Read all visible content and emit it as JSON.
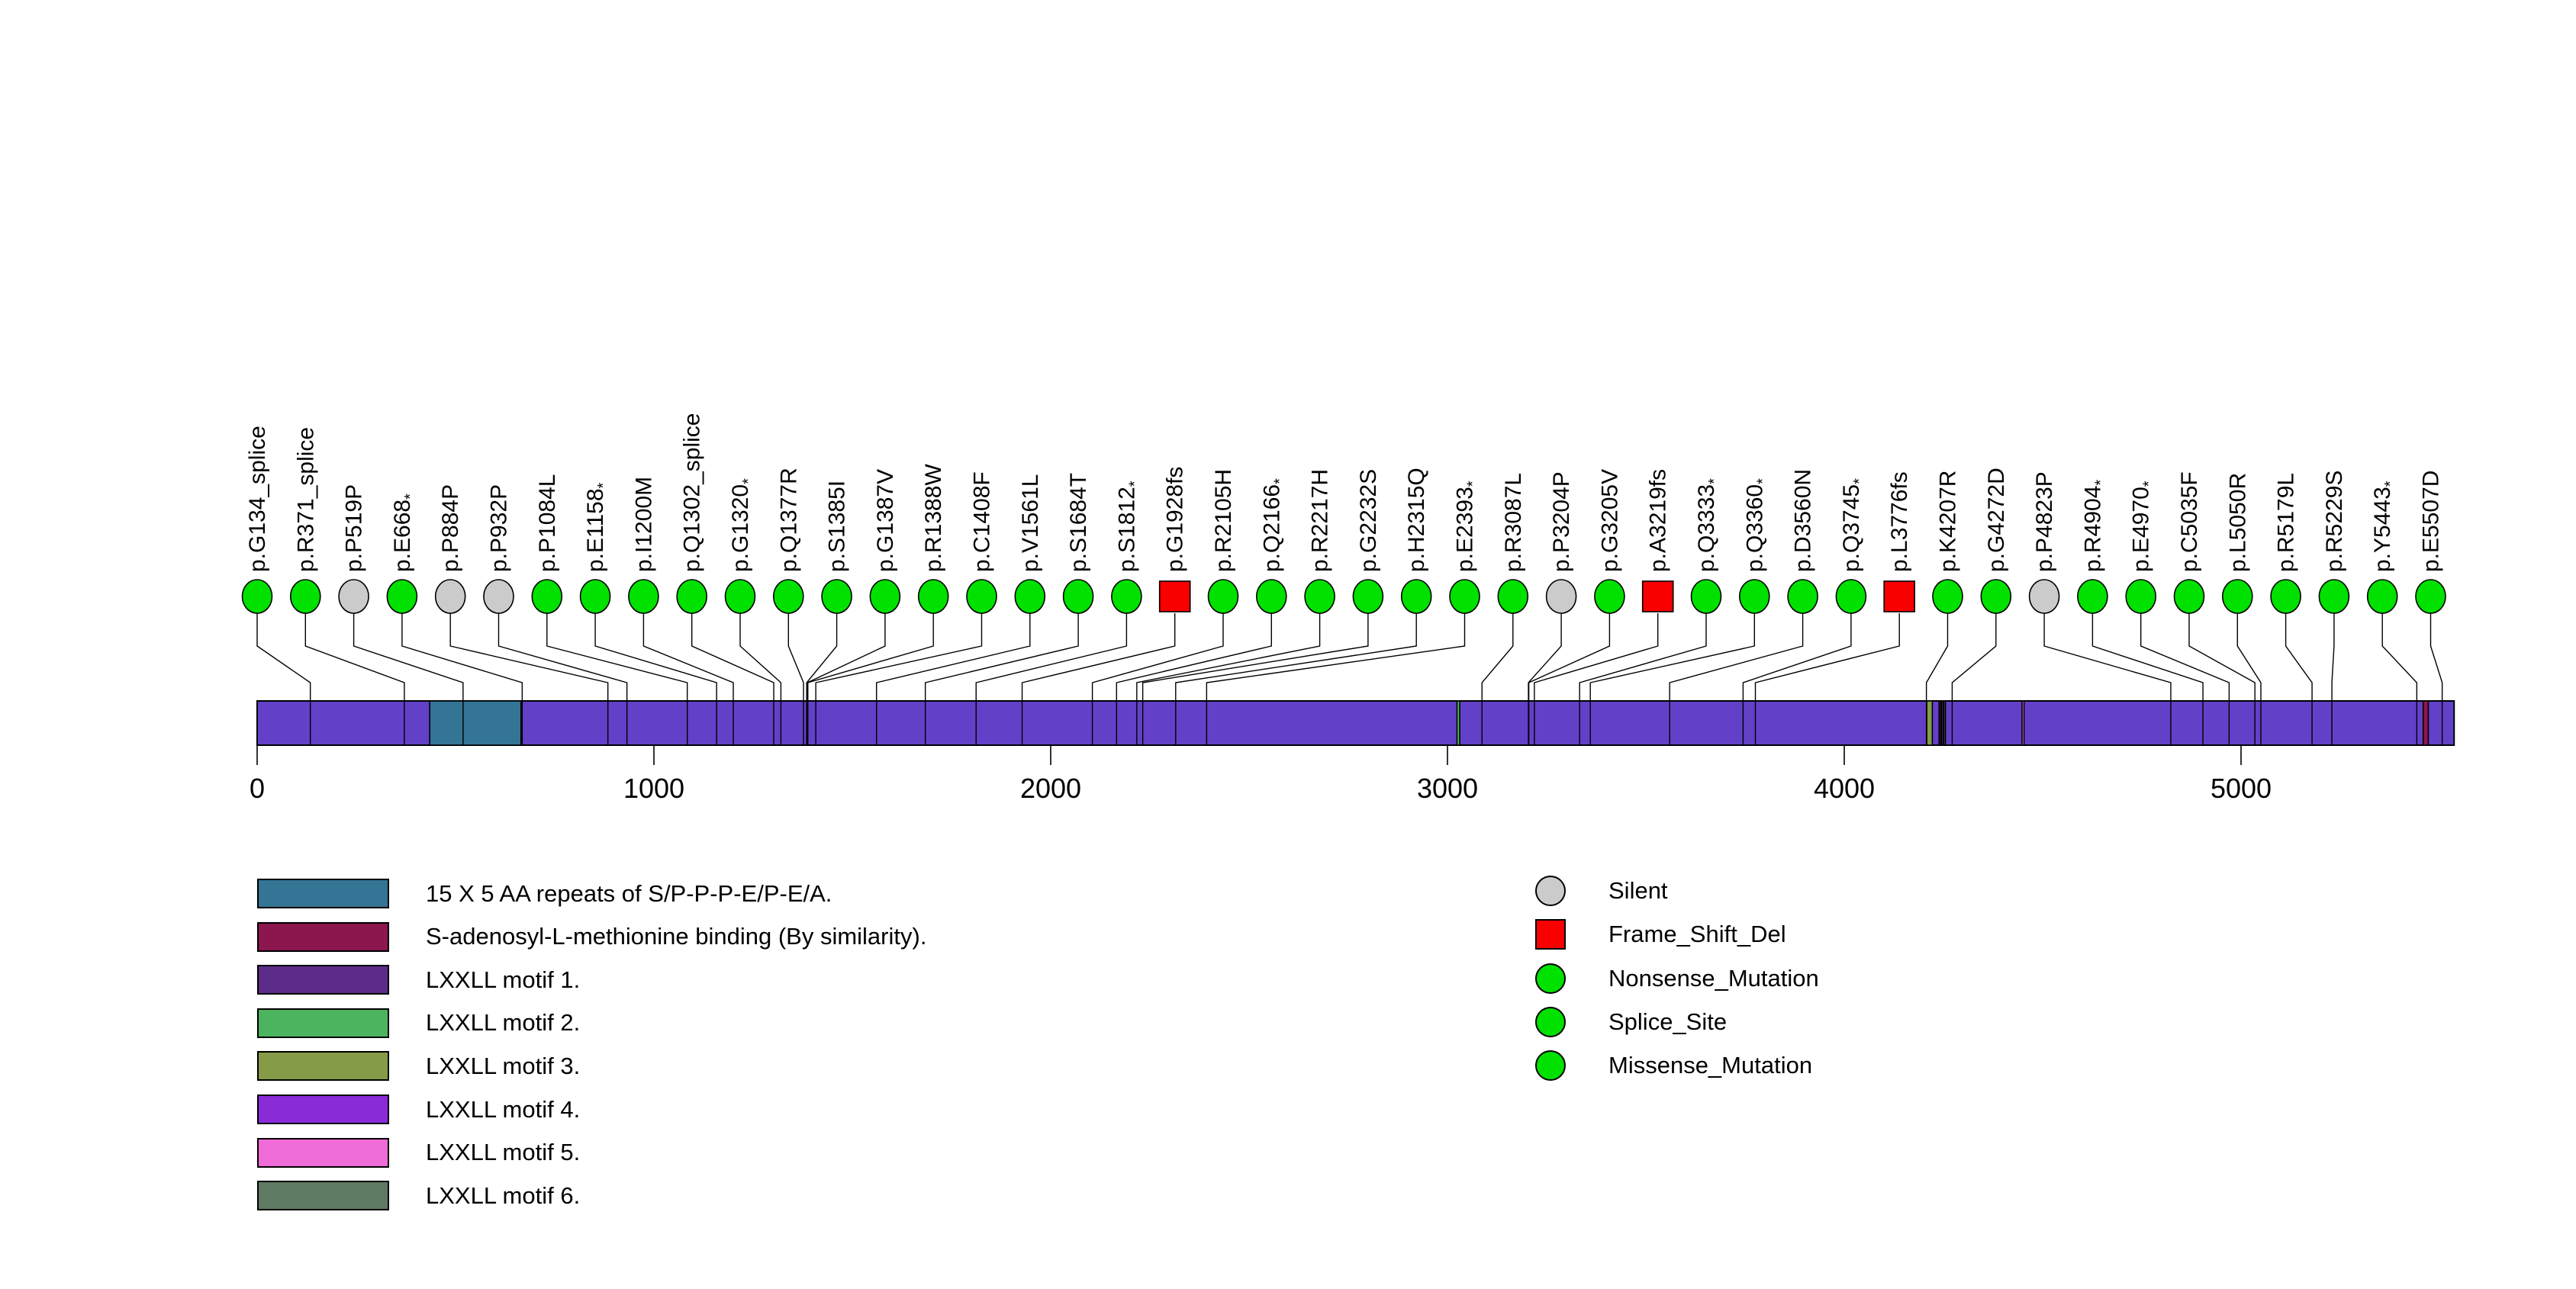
{
  "figure": {
    "background": "#ffffff"
  },
  "chart_data": {
    "type": "lollipop",
    "title": "",
    "xlabel": "",
    "ylabel": "",
    "grid": false,
    "protein_length": 5537,
    "xlim": [
      0,
      5537
    ],
    "axis_ticks": [
      0,
      1000,
      2000,
      3000,
      4000,
      5000
    ],
    "bar_color": "#6241c8",
    "marker_outline": "#000000",
    "mutation_types": {
      "Silent": {
        "color": "#cbcbcb",
        "shape": "circle"
      },
      "Frame_Shift_Del": {
        "color": "#f80000",
        "shape": "square"
      },
      "Nonsense_Mutation": {
        "color": "#00e100",
        "shape": "circle"
      },
      "Splice_Site": {
        "color": "#00e100",
        "shape": "circle"
      },
      "Missense_Mutation": {
        "color": "#00e100",
        "shape": "circle"
      }
    },
    "type_legend": [
      {
        "label": "Silent",
        "color": "#cbcbcb",
        "shape": "circle"
      },
      {
        "label": "Frame_Shift_Del",
        "color": "#f80000",
        "shape": "square"
      },
      {
        "label": "Nonsense_Mutation",
        "color": "#00e100",
        "shape": "circle"
      },
      {
        "label": "Splice_Site",
        "color": "#00e100",
        "shape": "circle"
      },
      {
        "label": "Missense_Mutation",
        "color": "#00e100",
        "shape": "circle"
      }
    ],
    "domains": [
      {
        "label": "15 X 5 AA repeats of S/P-P-P-E/P-E/A.",
        "color": "#347494",
        "start": 435,
        "end": 665
      },
      {
        "label": "S-adenosyl-L-methionine binding (By similarity).",
        "color": "#8c164e",
        "start": 5459,
        "end": 5472
      },
      {
        "label": "LXXLL motif 1.",
        "color": "#5b2d88",
        "start": 4239,
        "end": 4243
      },
      {
        "label": "LXXLL motif 2.",
        "color": "#4cb45f",
        "start": 3024,
        "end": 3031
      },
      {
        "label": "LXXLL motif 3.",
        "color": "#859b47",
        "start": 4208,
        "end": 4222
      },
      {
        "label": "LXXLL motif 4.",
        "color": "#8a2bd8",
        "start": 4245,
        "end": 4249
      },
      {
        "label": "LXXLL motif 5.",
        "color": "#ef6bd7",
        "start": 4448,
        "end": 4453
      },
      {
        "label": "LXXLL motif 6.",
        "color": "#5e7a62",
        "start": 4251,
        "end": 4255
      }
    ],
    "mutations": [
      {
        "label": "p.G134_splice",
        "position": 134,
        "type": "Splice_Site"
      },
      {
        "label": "p.R371_splice",
        "position": 371,
        "type": "Splice_Site"
      },
      {
        "label": "p.P519P",
        "position": 519,
        "type": "Silent"
      },
      {
        "label": "p.E668*",
        "position": 668,
        "type": "Nonsense_Mutation"
      },
      {
        "label": "p.P884P",
        "position": 884,
        "type": "Silent"
      },
      {
        "label": "p.P932P",
        "position": 932,
        "type": "Silent"
      },
      {
        "label": "p.P1084L",
        "position": 1084,
        "type": "Missense_Mutation"
      },
      {
        "label": "p.E1158*",
        "position": 1158,
        "type": "Nonsense_Mutation"
      },
      {
        "label": "p.I1200M",
        "position": 1200,
        "type": "Missense_Mutation"
      },
      {
        "label": "p.Q1302_splice",
        "position": 1302,
        "type": "Splice_Site"
      },
      {
        "label": "p.G1320*",
        "position": 1320,
        "type": "Nonsense_Mutation"
      },
      {
        "label": "p.Q1377R",
        "position": 1377,
        "type": "Missense_Mutation"
      },
      {
        "label": "p.S1385I",
        "position": 1385,
        "type": "Missense_Mutation"
      },
      {
        "label": "p.G1387V",
        "position": 1387,
        "type": "Missense_Mutation"
      },
      {
        "label": "p.R1388W",
        "position": 1388,
        "type": "Missense_Mutation"
      },
      {
        "label": "p.C1408F",
        "position": 1408,
        "type": "Missense_Mutation"
      },
      {
        "label": "p.V1561L",
        "position": 1561,
        "type": "Missense_Mutation"
      },
      {
        "label": "p.S1684T",
        "position": 1684,
        "type": "Missense_Mutation"
      },
      {
        "label": "p.S1812*",
        "position": 1812,
        "type": "Nonsense_Mutation"
      },
      {
        "label": "p.G1928fs",
        "position": 1928,
        "type": "Frame_Shift_Del"
      },
      {
        "label": "p.R2105H",
        "position": 2105,
        "type": "Missense_Mutation"
      },
      {
        "label": "p.Q2166*",
        "position": 2166,
        "type": "Nonsense_Mutation"
      },
      {
        "label": "p.R2217H",
        "position": 2217,
        "type": "Missense_Mutation"
      },
      {
        "label": "p.G2232S",
        "position": 2232,
        "type": "Missense_Mutation"
      },
      {
        "label": "p.H2315Q",
        "position": 2315,
        "type": "Missense_Mutation"
      },
      {
        "label": "p.E2393*",
        "position": 2393,
        "type": "Nonsense_Mutation"
      },
      {
        "label": "p.R3087L",
        "position": 3087,
        "type": "Missense_Mutation"
      },
      {
        "label": "p.P3204P",
        "position": 3204,
        "type": "Silent"
      },
      {
        "label": "p.G3205V",
        "position": 3205,
        "type": "Missense_Mutation"
      },
      {
        "label": "p.A3219fs",
        "position": 3219,
        "type": "Frame_Shift_Del"
      },
      {
        "label": "p.Q3333*",
        "position": 3333,
        "type": "Nonsense_Mutation"
      },
      {
        "label": "p.Q3360*",
        "position": 3360,
        "type": "Nonsense_Mutation"
      },
      {
        "label": "p.D3560N",
        "position": 3560,
        "type": "Missense_Mutation"
      },
      {
        "label": "p.Q3745*",
        "position": 3745,
        "type": "Nonsense_Mutation"
      },
      {
        "label": "p.L3776fs",
        "position": 3776,
        "type": "Frame_Shift_Del"
      },
      {
        "label": "p.K4207R",
        "position": 4207,
        "type": "Missense_Mutation"
      },
      {
        "label": "p.G4272D",
        "position": 4272,
        "type": "Missense_Mutation"
      },
      {
        "label": "p.P4823P",
        "position": 4823,
        "type": "Silent"
      },
      {
        "label": "p.R4904*",
        "position": 4904,
        "type": "Nonsense_Mutation"
      },
      {
        "label": "p.E4970*",
        "position": 4970,
        "type": "Nonsense_Mutation"
      },
      {
        "label": "p.C5035F",
        "position": 5035,
        "type": "Missense_Mutation"
      },
      {
        "label": "p.L5050R",
        "position": 5050,
        "type": "Missense_Mutation"
      },
      {
        "label": "p.R5179L",
        "position": 5179,
        "type": "Missense_Mutation"
      },
      {
        "label": "p.R5229S",
        "position": 5229,
        "type": "Missense_Mutation"
      },
      {
        "label": "p.Y5443*",
        "position": 5443,
        "type": "Nonsense_Mutation"
      },
      {
        "label": "p.E5507D",
        "position": 5507,
        "type": "Missense_Mutation"
      }
    ]
  }
}
